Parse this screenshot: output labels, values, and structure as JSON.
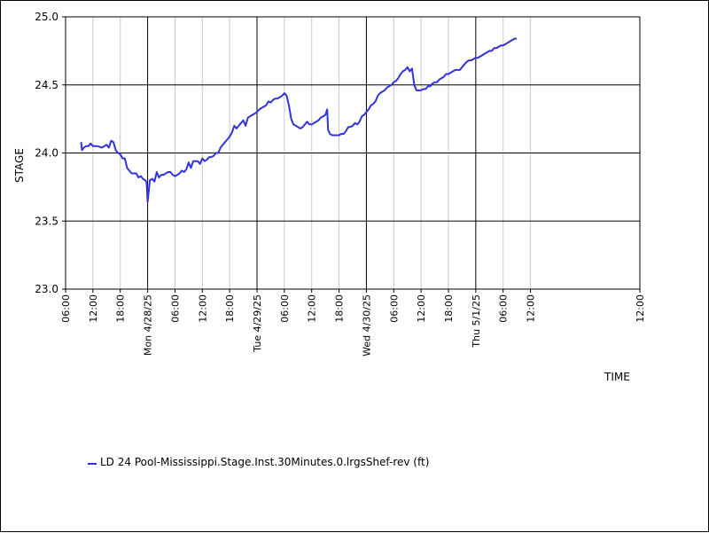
{
  "chart_data": {
    "type": "line",
    "title": "",
    "xlabel": "TIME",
    "ylabel": "STAGE",
    "ylim": [
      23.0,
      25.0
    ],
    "y_ticks": [
      "23.0",
      "23.5",
      "24.0",
      "24.5",
      "25.0"
    ],
    "x_range_hours": [
      0,
      126
    ],
    "x_ticks": [
      {
        "h": 0,
        "label": "06:00",
        "major": false
      },
      {
        "h": 6,
        "label": "12:00",
        "major": false
      },
      {
        "h": 12,
        "label": "18:00",
        "major": false
      },
      {
        "h": 18,
        "label": "Mon 4/28/25",
        "major": true
      },
      {
        "h": 24,
        "label": "06:00",
        "major": false
      },
      {
        "h": 30,
        "label": "12:00",
        "major": false
      },
      {
        "h": 36,
        "label": "18:00",
        "major": false
      },
      {
        "h": 42,
        "label": "Tue 4/29/25",
        "major": true
      },
      {
        "h": 48,
        "label": "06:00",
        "major": false
      },
      {
        "h": 54,
        "label": "12:00",
        "major": false
      },
      {
        "h": 60,
        "label": "18:00",
        "major": false
      },
      {
        "h": 66,
        "label": "Wed 4/30/25",
        "major": true
      },
      {
        "h": 72,
        "label": "06:00",
        "major": false
      },
      {
        "h": 78,
        "label": "12:00",
        "major": false
      },
      {
        "h": 84,
        "label": "18:00",
        "major": false
      },
      {
        "h": 90,
        "label": "Thu 5/1/25",
        "major": true
      },
      {
        "h": 96,
        "label": "06:00",
        "major": false
      },
      {
        "h": 102,
        "label": "12:00",
        "major": false
      }
    ],
    "grid": true,
    "legend_position": "bottom-left",
    "series": [
      {
        "name": "LD 24 Pool-Mississippi.Stage.Inst.30Minutes.0.lrgsShef-rev (ft)",
        "color": "#3333dd",
        "points": [
          [
            3.4,
            24.08
          ],
          [
            3.6,
            24.02
          ],
          [
            4.0,
            24.04
          ],
          [
            4.5,
            24.05
          ],
          [
            5.0,
            24.05
          ],
          [
            5.5,
            24.07
          ],
          [
            6.0,
            24.05
          ],
          [
            7.0,
            24.05
          ],
          [
            8.0,
            24.04
          ],
          [
            8.5,
            24.05
          ],
          [
            9.0,
            24.06
          ],
          [
            9.5,
            24.04
          ],
          [
            10.0,
            24.09
          ],
          [
            10.5,
            24.08
          ],
          [
            11.0,
            24.02
          ],
          [
            11.5,
            24.0
          ],
          [
            12.0,
            23.99
          ],
          [
            12.5,
            23.96
          ],
          [
            13.0,
            23.96
          ],
          [
            13.5,
            23.89
          ],
          [
            14.0,
            23.87
          ],
          [
            14.5,
            23.85
          ],
          [
            15.0,
            23.85
          ],
          [
            15.5,
            23.85
          ],
          [
            16.0,
            23.82
          ],
          [
            16.5,
            23.83
          ],
          [
            17.0,
            23.81
          ],
          [
            17.5,
            23.8
          ],
          [
            17.8,
            23.78
          ],
          [
            18.0,
            23.64
          ],
          [
            18.5,
            23.8
          ],
          [
            19.0,
            23.81
          ],
          [
            19.5,
            23.79
          ],
          [
            20.0,
            23.86
          ],
          [
            20.5,
            23.82
          ],
          [
            21.0,
            23.84
          ],
          [
            21.5,
            23.84
          ],
          [
            22.0,
            23.85
          ],
          [
            22.5,
            23.86
          ],
          [
            23.0,
            23.86
          ],
          [
            23.5,
            23.84
          ],
          [
            24.0,
            23.83
          ],
          [
            24.5,
            23.84
          ],
          [
            25.0,
            23.85
          ],
          [
            25.5,
            23.87
          ],
          [
            26.0,
            23.86
          ],
          [
            26.5,
            23.88
          ],
          [
            27.0,
            23.93
          ],
          [
            27.5,
            23.89
          ],
          [
            28.0,
            23.94
          ],
          [
            28.5,
            23.94
          ],
          [
            29.0,
            23.94
          ],
          [
            29.5,
            23.92
          ],
          [
            30.0,
            23.96
          ],
          [
            30.5,
            23.94
          ],
          [
            31.0,
            23.95
          ],
          [
            31.5,
            23.97
          ],
          [
            32.0,
            23.97
          ],
          [
            32.5,
            23.98
          ],
          [
            33.0,
            24.0
          ],
          [
            33.5,
            24.0
          ],
          [
            34.0,
            24.04
          ],
          [
            34.5,
            24.06
          ],
          [
            35.0,
            24.08
          ],
          [
            35.5,
            24.1
          ],
          [
            36.0,
            24.12
          ],
          [
            36.5,
            24.15
          ],
          [
            37.0,
            24.2
          ],
          [
            37.5,
            24.18
          ],
          [
            38.0,
            24.2
          ],
          [
            38.5,
            24.22
          ],
          [
            39.0,
            24.24
          ],
          [
            39.5,
            24.2
          ],
          [
            40.0,
            24.26
          ],
          [
            40.5,
            24.27
          ],
          [
            41.0,
            24.28
          ],
          [
            41.5,
            24.29
          ],
          [
            42.0,
            24.3
          ],
          [
            42.5,
            24.32
          ],
          [
            43.0,
            24.33
          ],
          [
            43.5,
            24.34
          ],
          [
            44.0,
            24.35
          ],
          [
            44.5,
            24.38
          ],
          [
            45.0,
            24.37
          ],
          [
            45.5,
            24.39
          ],
          [
            46.0,
            24.4
          ],
          [
            46.5,
            24.4
          ],
          [
            47.0,
            24.41
          ],
          [
            47.5,
            24.42
          ],
          [
            48.0,
            24.44
          ],
          [
            48.5,
            24.42
          ],
          [
            49.0,
            24.35
          ],
          [
            49.5,
            24.25
          ],
          [
            50.0,
            24.21
          ],
          [
            50.5,
            24.2
          ],
          [
            51.0,
            24.19
          ],
          [
            51.5,
            24.18
          ],
          [
            52.0,
            24.19
          ],
          [
            52.5,
            24.21
          ],
          [
            53.0,
            24.23
          ],
          [
            53.5,
            24.21
          ],
          [
            54.0,
            24.21
          ],
          [
            54.5,
            24.22
          ],
          [
            55.0,
            24.23
          ],
          [
            55.5,
            24.24
          ],
          [
            56.0,
            24.26
          ],
          [
            56.5,
            24.27
          ],
          [
            57.0,
            24.28
          ],
          [
            57.4,
            24.32
          ],
          [
            57.6,
            24.17
          ],
          [
            58.0,
            24.14
          ],
          [
            58.5,
            24.13
          ],
          [
            59.0,
            24.13
          ],
          [
            59.5,
            24.13
          ],
          [
            60.0,
            24.13
          ],
          [
            60.5,
            24.14
          ],
          [
            61.0,
            24.14
          ],
          [
            61.5,
            24.16
          ],
          [
            62.0,
            24.19
          ],
          [
            62.5,
            24.19
          ],
          [
            63.0,
            24.2
          ],
          [
            63.5,
            24.22
          ],
          [
            64.0,
            24.21
          ],
          [
            64.5,
            24.23
          ],
          [
            65.0,
            24.27
          ],
          [
            65.5,
            24.28
          ],
          [
            66.0,
            24.3
          ],
          [
            66.5,
            24.32
          ],
          [
            67.0,
            24.35
          ],
          [
            67.5,
            24.36
          ],
          [
            68.0,
            24.38
          ],
          [
            68.5,
            24.42
          ],
          [
            69.0,
            24.44
          ],
          [
            69.5,
            24.45
          ],
          [
            70.0,
            24.46
          ],
          [
            70.5,
            24.48
          ],
          [
            71.0,
            24.49
          ],
          [
            71.5,
            24.5
          ],
          [
            72.0,
            24.52
          ],
          [
            72.5,
            24.53
          ],
          [
            73.0,
            24.55
          ],
          [
            73.5,
            24.58
          ],
          [
            74.0,
            24.6
          ],
          [
            74.5,
            24.61
          ],
          [
            75.0,
            24.63
          ],
          [
            75.5,
            24.6
          ],
          [
            76.0,
            24.62
          ],
          [
            76.5,
            24.5
          ],
          [
            77.0,
            24.46
          ],
          [
            77.5,
            24.46
          ],
          [
            78.0,
            24.46
          ],
          [
            78.5,
            24.47
          ],
          [
            79.0,
            24.47
          ],
          [
            79.5,
            24.49
          ],
          [
            80.0,
            24.49
          ],
          [
            80.5,
            24.51
          ],
          [
            81.0,
            24.52
          ],
          [
            81.5,
            24.52
          ],
          [
            82.0,
            24.54
          ],
          [
            82.5,
            24.55
          ],
          [
            83.0,
            24.56
          ],
          [
            83.5,
            24.58
          ],
          [
            84.0,
            24.58
          ],
          [
            84.5,
            24.59
          ],
          [
            85.0,
            24.6
          ],
          [
            85.5,
            24.61
          ],
          [
            86.0,
            24.61
          ],
          [
            86.5,
            24.61
          ],
          [
            87.0,
            24.63
          ],
          [
            87.5,
            24.65
          ],
          [
            88.0,
            24.67
          ],
          [
            88.5,
            24.68
          ],
          [
            89.0,
            24.68
          ],
          [
            89.5,
            24.69
          ],
          [
            90.0,
            24.7
          ],
          [
            90.5,
            24.7
          ],
          [
            91.0,
            24.71
          ],
          [
            91.5,
            24.72
          ],
          [
            92.0,
            24.73
          ],
          [
            92.5,
            24.74
          ],
          [
            93.0,
            24.75
          ],
          [
            93.5,
            24.75
          ],
          [
            94.0,
            24.77
          ],
          [
            94.5,
            24.77
          ],
          [
            95.0,
            24.78
          ],
          [
            95.5,
            24.79
          ],
          [
            96.0,
            24.79
          ],
          [
            96.5,
            24.8
          ],
          [
            97.0,
            24.81
          ],
          [
            97.5,
            24.82
          ],
          [
            98.0,
            24.83
          ],
          [
            98.5,
            24.84
          ],
          [
            99.0,
            24.84
          ]
        ]
      }
    ]
  }
}
